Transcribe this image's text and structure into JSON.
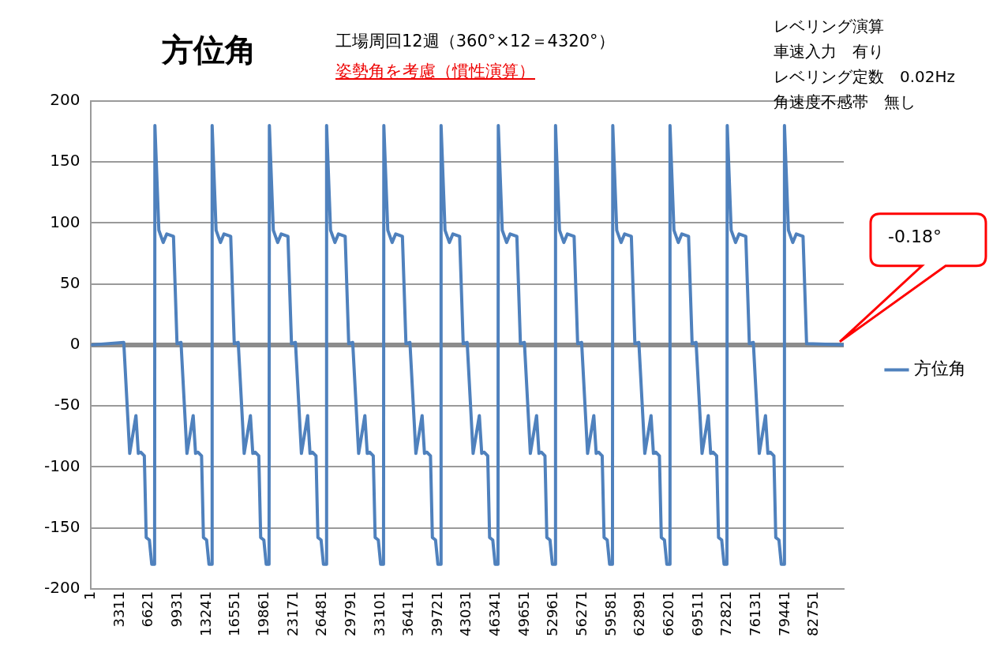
{
  "chart_data": {
    "type": "line",
    "title": "方位角",
    "subtitle": "工場周回12週（360°×12＝4320°）",
    "annotations": [
      "姿勢角を考慮（慣性演算）",
      "レベリング演算",
      "車速入力　有り",
      "レベリング定数　0.02Hz",
      "角速度不感帯　無し",
      "-0.18°"
    ],
    "xlim": [
      1,
      86130
    ],
    "xticks": [
      1,
      3311,
      6621,
      9931,
      13241,
      16551,
      19861,
      23171,
      26481,
      29791,
      33101,
      36411,
      39721,
      43031,
      46341,
      49651,
      52961,
      56271,
      59581,
      62891,
      66201,
      69511,
      72821,
      76131,
      79441,
      82751
    ],
    "ylim": [
      -200,
      200
    ],
    "yticks": [
      200,
      150,
      100,
      50,
      0,
      -50,
      -100,
      -150,
      -200
    ],
    "grid": "y",
    "legend": "right",
    "line_style": "solid",
    "series": [
      {
        "name": "方位角",
        "color": "#4f81bd",
        "x": [
          1,
          3743,
          4421,
          5136,
          5407,
          5678,
          6094,
          6311,
          6672,
          6944,
          7269,
          7305,
          7757,
          8254,
          8661,
          9430,
          9836,
          10292,
          10970,
          11685,
          11956,
          12227,
          12643,
          12860,
          13221,
          13493,
          13818,
          13854,
          14306,
          14803,
          15210,
          15979,
          16385,
          16841,
          17519,
          18234,
          18505,
          18776,
          19192,
          19409,
          19770,
          20042,
          20367,
          20403,
          20855,
          21352,
          21759,
          22528,
          22934,
          23390,
          24068,
          24783,
          25054,
          25325,
          25741,
          25958,
          26319,
          26591,
          26916,
          26952,
          27404,
          27901,
          28308,
          29077,
          29483,
          29939,
          30617,
          31332,
          31603,
          31874,
          32290,
          32507,
          32868,
          33140,
          33465,
          33501,
          33953,
          34450,
          34857,
          35626,
          36032,
          36488,
          37166,
          37881,
          38152,
          38423,
          38839,
          39056,
          39417,
          39689,
          40014,
          40050,
          40502,
          40999,
          41406,
          42175,
          42581,
          43037,
          43715,
          44430,
          44701,
          44972,
          45388,
          45605,
          45966,
          46238,
          46563,
          46599,
          47051,
          47548,
          47955,
          48724,
          49130,
          49586,
          50264,
          50979,
          51250,
          51521,
          51937,
          52154,
          52515,
          52787,
          53112,
          53148,
          53600,
          54097,
          54504,
          55273,
          55679,
          56135,
          56813,
          57528,
          57799,
          58070,
          58486,
          58703,
          59064,
          59336,
          59661,
          59697,
          60149,
          60646,
          61053,
          61822,
          62228,
          62684,
          63362,
          64077,
          64348,
          64619,
          65035,
          65252,
          65613,
          65885,
          66210,
          66246,
          66698,
          67195,
          67602,
          68371,
          68777,
          69233,
          69911,
          70626,
          70897,
          71168,
          71584,
          71801,
          72162,
          72434,
          72759,
          72795,
          73247,
          73744,
          74151,
          74920,
          75326,
          75782,
          76460,
          77175,
          77446,
          77717,
          78133,
          78350,
          78711,
          78983,
          79308,
          79344,
          79796,
          80293,
          80700,
          81469,
          81875,
          86130
        ],
        "values": [
          0,
          2,
          -89,
          -58,
          -89,
          -88,
          -91,
          -158,
          -160,
          -180,
          -180,
          180,
          94,
          84,
          91,
          89,
          1,
          2,
          -89,
          -58,
          -89,
          -88,
          -91,
          -158,
          -160,
          -180,
          -180,
          180,
          94,
          84,
          91,
          89,
          1,
          2,
          -89,
          -58,
          -89,
          -88,
          -91,
          -158,
          -160,
          -180,
          -180,
          180,
          94,
          84,
          91,
          89,
          1,
          2,
          -89,
          -58,
          -89,
          -88,
          -91,
          -158,
          -160,
          -180,
          -180,
          180,
          94,
          84,
          91,
          89,
          1,
          2,
          -89,
          -58,
          -89,
          -88,
          -91,
          -158,
          -160,
          -180,
          -180,
          180,
          94,
          84,
          91,
          89,
          1,
          2,
          -89,
          -58,
          -89,
          -88,
          -91,
          -158,
          -160,
          -180,
          -180,
          180,
          94,
          84,
          91,
          89,
          1,
          2,
          -89,
          -58,
          -89,
          -88,
          -91,
          -158,
          -160,
          -180,
          -180,
          180,
          94,
          84,
          91,
          89,
          1,
          2,
          -89,
          -58,
          -89,
          -88,
          -91,
          -158,
          -160,
          -180,
          -180,
          180,
          94,
          84,
          91,
          89,
          1,
          2,
          -89,
          -58,
          -89,
          -88,
          -91,
          -158,
          -160,
          -180,
          -180,
          180,
          94,
          84,
          91,
          89,
          1,
          2,
          -89,
          -58,
          -89,
          -88,
          -91,
          -158,
          -160,
          -180,
          -180,
          180,
          94,
          84,
          91,
          89,
          1,
          2,
          -89,
          -58,
          -89,
          -88,
          -91,
          -158,
          -160,
          -180,
          -180,
          180,
          94,
          84,
          91,
          89,
          1,
          2,
          -89,
          -58,
          -89,
          -88,
          -91,
          -158,
          -160,
          -180,
          -180,
          180,
          94,
          84,
          91,
          89,
          1,
          0
        ]
      }
    ]
  }
}
